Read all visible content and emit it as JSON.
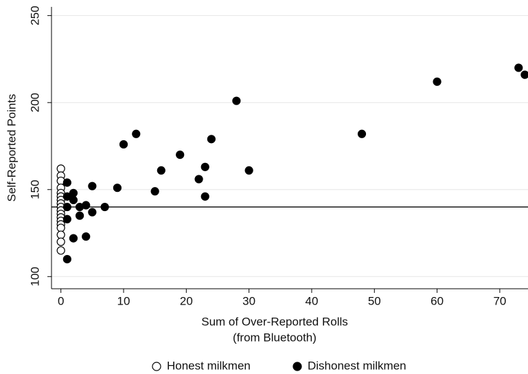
{
  "chart_data": {
    "type": "scatter",
    "x_label": "Sum of Over-Reported Rolls",
    "x_label_sub": "(from Bluetooth)",
    "y_label": "Self-Reported Points",
    "xlim": [
      -1.5,
      74.5
    ],
    "ylim": [
      93,
      255
    ],
    "xticks": [
      0,
      10,
      20,
      30,
      40,
      50,
      60,
      70
    ],
    "yticks": [
      100,
      150,
      200,
      250
    ],
    "grid": true,
    "hline": 140,
    "legend": "bottom",
    "series": [
      {
        "name": "Honest milkmen",
        "color": "#000000",
        "filled": false,
        "x": [
          0,
          0,
          0,
          0,
          0,
          0,
          0,
          0,
          0,
          0,
          0,
          0,
          0,
          0,
          0,
          0,
          0,
          0
        ],
        "y": [
          162,
          158,
          155,
          151,
          148,
          146,
          144,
          142,
          140,
          138,
          136,
          134,
          132,
          130,
          128,
          124,
          120,
          115
        ]
      },
      {
        "name": "Dishonest milkmen",
        "color": "#000000",
        "filled": true,
        "x": [
          1,
          1,
          1,
          1,
          1,
          2,
          2,
          2,
          3,
          3,
          4,
          4,
          5,
          5,
          7,
          9,
          10,
          12,
          15,
          16,
          19,
          22,
          23,
          23,
          24,
          28,
          30,
          48,
          60,
          73,
          74
        ],
        "y": [
          110,
          154,
          146,
          140,
          133,
          148,
          144,
          122,
          140,
          135,
          141,
          123,
          152,
          137,
          140,
          151,
          176,
          182,
          149,
          161,
          170,
          156,
          163,
          146,
          179,
          201,
          161,
          182,
          212,
          220,
          216
        ]
      }
    ]
  }
}
